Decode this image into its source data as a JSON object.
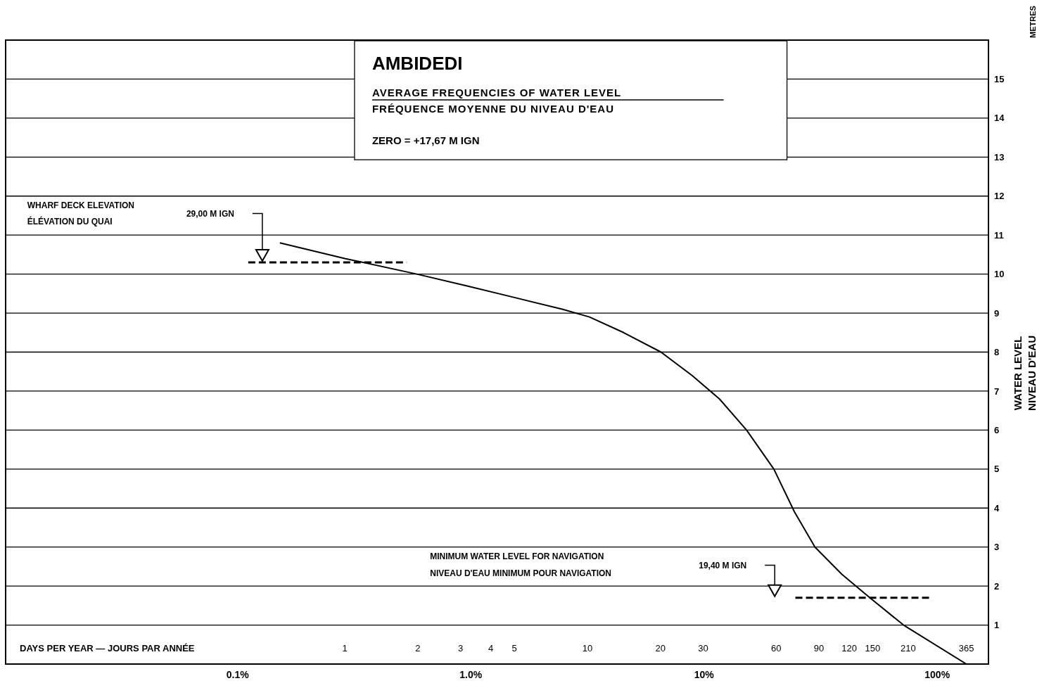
{
  "chart_data": {
    "type": "line",
    "title": "AMBIDEDI",
    "subtitle": "AVERAGE FREQUENCIES OF WATER LEVEL",
    "xlabel": "DAYS PER YEAR — JOURS PAR ANNÉE",
    "ylabel": "WATER LEVEL\nNIVEAU D'EAU",
    "annotations": [
      "FRÉQUENCE MOYENNE DU NIVEAU D'EAU",
      "ZERO = +17,67 M IGN",
      "METRES",
      "WHARF DECK ELEVATION",
      "ÉLÉVATION DU QUAI",
      "29,00 M IGN",
      "MINIMUM WATER LEVEL FOR NAVIGATION",
      "NIVEAU D'EAU MINIMUM POUR NAVIGATION",
      "19,40 M IGN",
      "0.1%",
      "1.0%",
      "10%",
      "100%"
    ],
    "series": [
      {
        "color": "#000000",
        "line_style": "solid",
        "x": [
          0.54,
          1,
          1.98,
          3.17,
          5,
          7.87,
          10.2,
          14.1,
          20.1,
          27,
          35,
          45.3,
          58.7,
          71.4,
          86.7,
          112,
          146,
          201,
          365
        ],
        "values": [
          10.8,
          10.4,
          10.0,
          9.7,
          9.4,
          9.1,
          8.9,
          8.5,
          8.0,
          7.4,
          6.8,
          6.0,
          5.0,
          3.9,
          3.0,
          2.3,
          1.7,
          1.0,
          0
        ]
      },
      {
        "color": "#000000",
        "line_style": "dashed",
        "x": [
          0.4,
          1.8
        ],
        "values": [
          10.3,
          10.3
        ]
      },
      {
        "color": "#000000",
        "line_style": "dashed",
        "x": [
          72,
          256
        ],
        "values": [
          1.7,
          1.7
        ]
      }
    ],
    "log": "x",
    "xlim": [
      0.04,
      450
    ],
    "xticks": [
      1,
      2,
      3,
      4,
      5,
      10,
      20,
      30,
      60,
      90,
      120,
      150,
      210,
      365
    ],
    "ylim": [
      0,
      16
    ],
    "yticks": [
      1,
      2,
      3,
      4,
      5,
      6,
      7,
      8,
      9,
      10,
      11,
      12,
      13,
      14,
      15
    ],
    "grid": true,
    "legend": false
  }
}
